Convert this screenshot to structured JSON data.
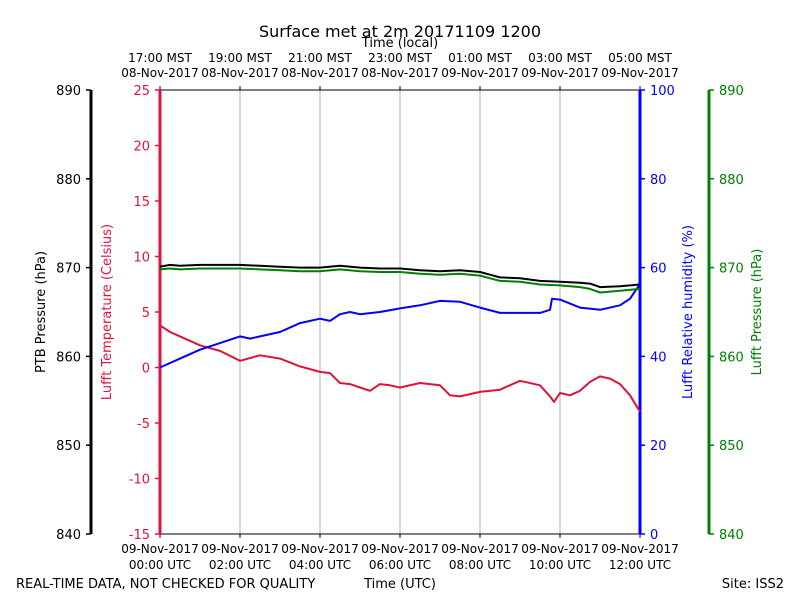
{
  "chart_data": {
    "type": "line",
    "title": "Surface met at 2m 20171109 1200",
    "top_xlabel": "Time (local)",
    "xlabel": "Time (UTC)",
    "footer_left": "REAL-TIME DATA, NOT CHECKED FOR QUALITY",
    "footer_right": "Site: ISS2",
    "x_hours": [
      0,
      2,
      4,
      6,
      8,
      10,
      12
    ],
    "xlim": [
      0,
      12
    ],
    "bottom_ticks": [
      {
        "date": "09-Nov-2017",
        "time": "00:00 UTC"
      },
      {
        "date": "09-Nov-2017",
        "time": "02:00 UTC"
      },
      {
        "date": "09-Nov-2017",
        "time": "04:00 UTC"
      },
      {
        "date": "09-Nov-2017",
        "time": "06:00 UTC"
      },
      {
        "date": "09-Nov-2017",
        "time": "08:00 UTC"
      },
      {
        "date": "09-Nov-2017",
        "time": "10:00 UTC"
      },
      {
        "date": "09-Nov-2017",
        "time": "12:00 UTC"
      }
    ],
    "top_ticks": [
      {
        "time": "17:00 MST",
        "date": "08-Nov-2017"
      },
      {
        "time": "19:00 MST",
        "date": "08-Nov-2017"
      },
      {
        "time": "21:00 MST",
        "date": "08-Nov-2017"
      },
      {
        "time": "23:00 MST",
        "date": "08-Nov-2017"
      },
      {
        "time": "01:00 MST",
        "date": "09-Nov-2017"
      },
      {
        "time": "03:00 MST",
        "date": "09-Nov-2017"
      },
      {
        "time": "05:00 MST",
        "date": "09-Nov-2017"
      }
    ],
    "axes": {
      "ptb": {
        "label": "PTB Pressure (hPa)",
        "ylim": [
          840,
          890
        ],
        "ticks": [
          840,
          850,
          860,
          870,
          880,
          890
        ],
        "color": "#000000"
      },
      "temp": {
        "label": "Lufft Temperature (Celsius)",
        "ylim": [
          -15,
          25
        ],
        "ticks": [
          -15,
          -10,
          -5,
          0,
          5,
          10,
          15,
          20,
          25
        ],
        "color": "#dc143c"
      },
      "rh": {
        "label": "Lufft Relative humidity (%)",
        "ylim": [
          0,
          100
        ],
        "ticks": [
          0,
          20,
          40,
          60,
          80,
          100
        ],
        "color": "#0000ff"
      },
      "lufft_p": {
        "label": "Lufft Pressure (hPa)",
        "ylim": [
          840,
          890
        ],
        "ticks": [
          840,
          850,
          860,
          870,
          880,
          890
        ],
        "color": "#008000"
      }
    },
    "series": [
      {
        "name": "PTB Pressure",
        "axis": "ptb",
        "color": "#000000",
        "x": [
          0,
          0.25,
          0.5,
          1,
          1.5,
          2,
          2.5,
          3,
          3.5,
          4,
          4.5,
          5,
          5.5,
          6,
          6.5,
          7,
          7.5,
          8,
          8.25,
          8.5,
          9,
          9.5,
          10,
          10.5,
          10.75,
          11,
          11.5,
          12
        ],
        "values": [
          870.1,
          870.3,
          870.2,
          870.3,
          870.3,
          870.3,
          870.2,
          870.1,
          870.0,
          870.0,
          870.2,
          870.0,
          869.9,
          869.9,
          869.7,
          869.6,
          869.7,
          869.5,
          869.2,
          868.9,
          868.8,
          868.5,
          868.4,
          868.3,
          868.2,
          867.8,
          867.9,
          868.1
        ]
      },
      {
        "name": "Lufft Temperature",
        "axis": "temp",
        "color": "#dc143c",
        "x": [
          0,
          0.25,
          0.5,
          1,
          1.5,
          2,
          2.5,
          3,
          3.5,
          4,
          4.25,
          4.5,
          4.75,
          5,
          5.25,
          5.5,
          5.75,
          6,
          6.5,
          7,
          7.25,
          7.5,
          8,
          8.5,
          9,
          9.5,
          9.75,
          9.85,
          10,
          10.25,
          10.5,
          10.75,
          11,
          11.25,
          11.5,
          11.75,
          11.9,
          12
        ],
        "values": [
          3.8,
          3.2,
          2.8,
          2.0,
          1.5,
          0.6,
          1.1,
          0.8,
          0.1,
          -0.4,
          -0.5,
          -1.4,
          -1.5,
          -1.8,
          -2.1,
          -1.5,
          -1.6,
          -1.8,
          -1.4,
          -1.6,
          -2.5,
          -2.6,
          -2.2,
          -2.0,
          -1.2,
          -1.6,
          -2.6,
          -3.1,
          -2.3,
          -2.5,
          -2.1,
          -1.3,
          -0.8,
          -1.0,
          -1.5,
          -2.5,
          -3.4,
          -4.0
        ]
      },
      {
        "name": "Lufft Relative humidity",
        "axis": "rh",
        "color": "#0000ff",
        "x": [
          0,
          0.5,
          1,
          1.5,
          2,
          2.25,
          2.5,
          3,
          3.5,
          4,
          4.25,
          4.5,
          4.75,
          5,
          5.5,
          6,
          6.5,
          7,
          7.5,
          8,
          8.5,
          9,
          9.5,
          9.75,
          9.8,
          10,
          10.5,
          11,
          11.5,
          11.75,
          11.9,
          12
        ],
        "values": [
          37.5,
          39.5,
          41.5,
          43.0,
          44.5,
          44.0,
          44.5,
          45.5,
          47.5,
          48.5,
          48.0,
          49.5,
          50.0,
          49.5,
          50.0,
          50.8,
          51.5,
          52.5,
          52.3,
          51.0,
          49.8,
          49.8,
          49.8,
          50.5,
          53.0,
          52.8,
          51.0,
          50.5,
          51.5,
          53.0,
          55.0,
          56.2
        ]
      },
      {
        "name": "Lufft Pressure",
        "axis": "lufft_p",
        "color": "#008000",
        "x": [
          0,
          0.25,
          0.5,
          1,
          1.5,
          2,
          2.5,
          3,
          3.5,
          4,
          4.5,
          5,
          5.5,
          6,
          6.5,
          7,
          7.5,
          8,
          8.25,
          8.5,
          9,
          9.5,
          10,
          10.5,
          10.75,
          11,
          11.5,
          12
        ],
        "values": [
          869.8,
          869.9,
          869.8,
          869.9,
          869.9,
          869.9,
          869.8,
          869.7,
          869.6,
          869.6,
          869.8,
          869.6,
          869.5,
          869.5,
          869.3,
          869.2,
          869.3,
          869.1,
          868.8,
          868.5,
          868.4,
          868.1,
          868.0,
          867.8,
          867.6,
          867.2,
          867.4,
          867.6
        ]
      }
    ]
  }
}
